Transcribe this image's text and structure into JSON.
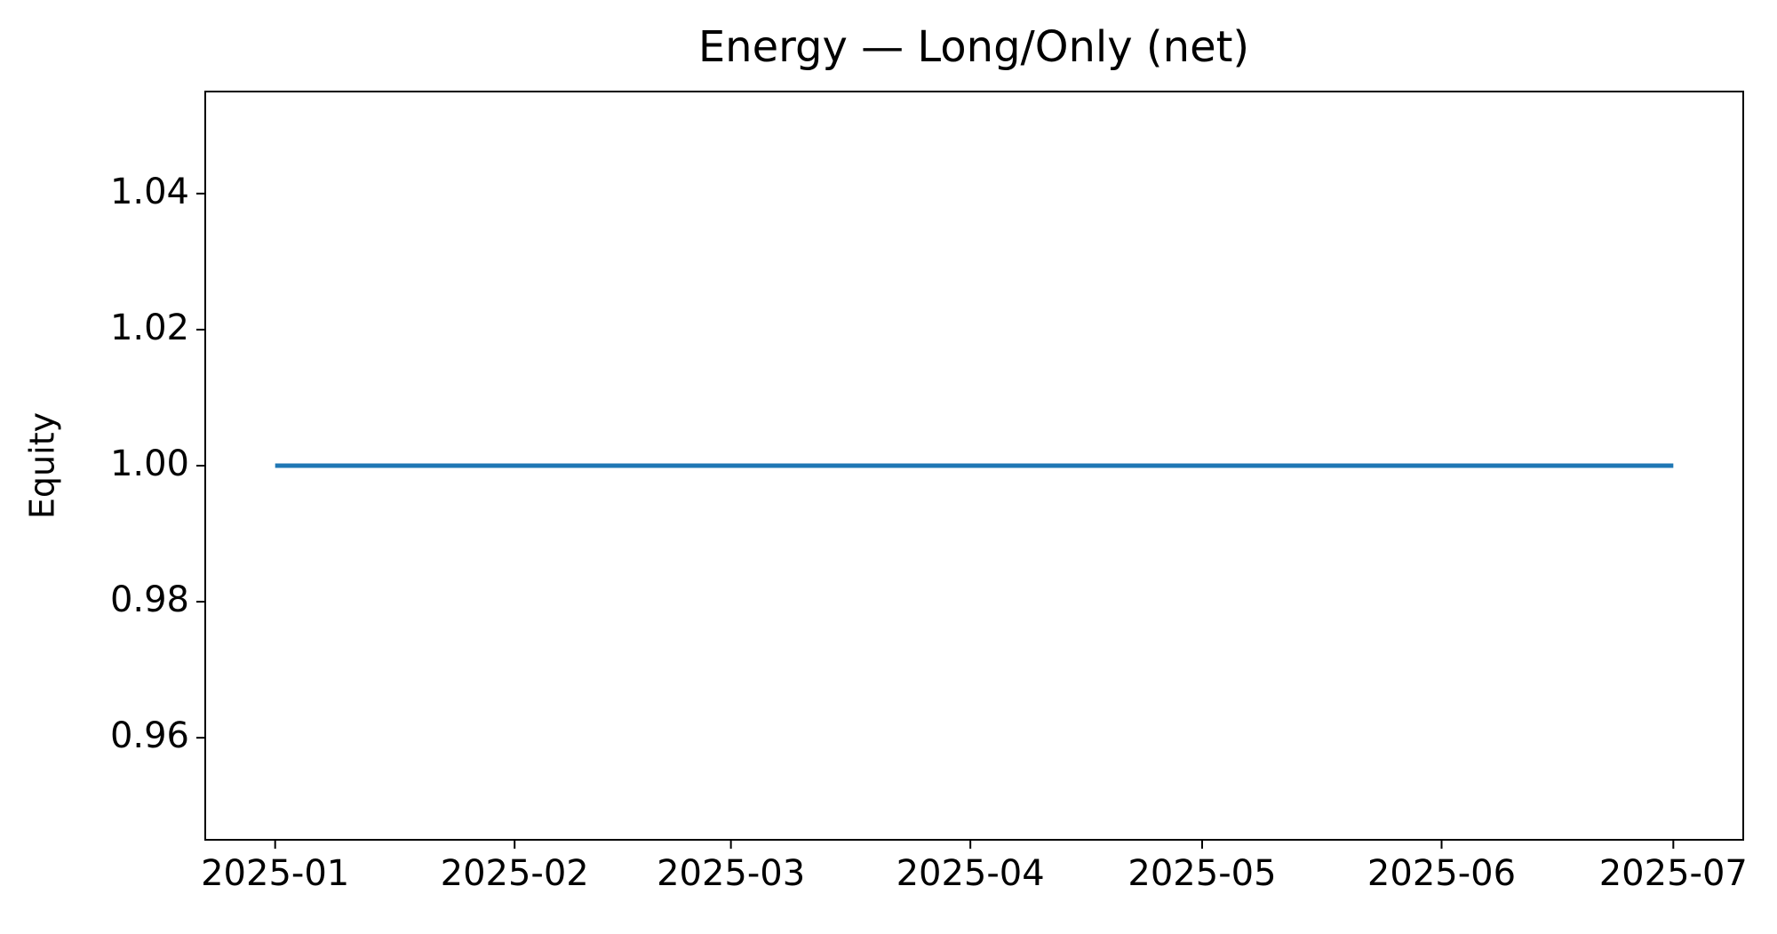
{
  "chart_data": {
    "type": "line",
    "title": "Energy — Long/Only (net)",
    "y_label": "Equity",
    "x": [
      "2025-01",
      "2025-07"
    ],
    "series": [
      {
        "name": "Equity",
        "color": "#1f77b4",
        "values": [
          1,
          1
        ]
      }
    ],
    "xticks": [
      "2025-01",
      "2025-02",
      "2025-03",
      "2025-04",
      "2025-05",
      "2025-06",
      "2025-07"
    ],
    "ylim": [
      0.945,
      1.055
    ],
    "yticks": [
      0.96,
      0.98,
      {
        "value": 1,
        "label": "1.00"
      },
      1.02,
      1.04
    ],
    "grid": false
  }
}
